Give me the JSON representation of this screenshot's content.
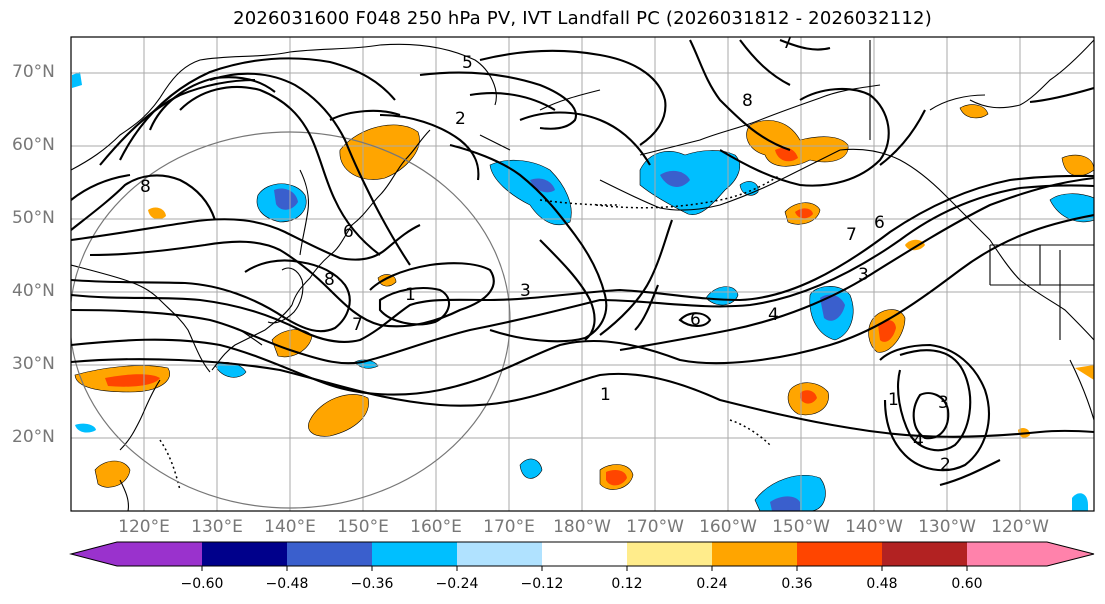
{
  "title": "2026031600 F048 250 hPa PV, IVT Landfall PC (2026031812 - 2026032112)",
  "lat_labels": [
    "70°N",
    "60°N",
    "50°N",
    "40°N",
    "30°N",
    "20°N"
  ],
  "lon_labels": [
    "120°E",
    "130°E",
    "140°E",
    "150°E",
    "160°E",
    "170°E",
    "180°W",
    "170°W",
    "160°W",
    "150°W",
    "140°W",
    "130°W",
    "120°W"
  ],
  "colorbar": {
    "ticks": [
      "−0.60",
      "−0.48",
      "−0.36",
      "−0.24",
      "−0.12",
      "0.12",
      "0.24",
      "0.36",
      "0.48",
      "0.60"
    ],
    "colors": [
      "#9a32cd",
      "#00008b",
      "#3a5fcd",
      "#00bfff",
      "#b0e2ff",
      "#ffffff",
      "#ffec8b",
      "#ffa500",
      "#ff4500",
      "#b22222",
      "#ff82ab"
    ]
  },
  "contour_labels": [
    "1",
    "1",
    "1",
    "2",
    "2",
    "3",
    "3",
    "3",
    "4",
    "4",
    "5",
    "6",
    "6",
    "6",
    "7",
    "7",
    "7",
    "8",
    "8",
    "8"
  ]
}
